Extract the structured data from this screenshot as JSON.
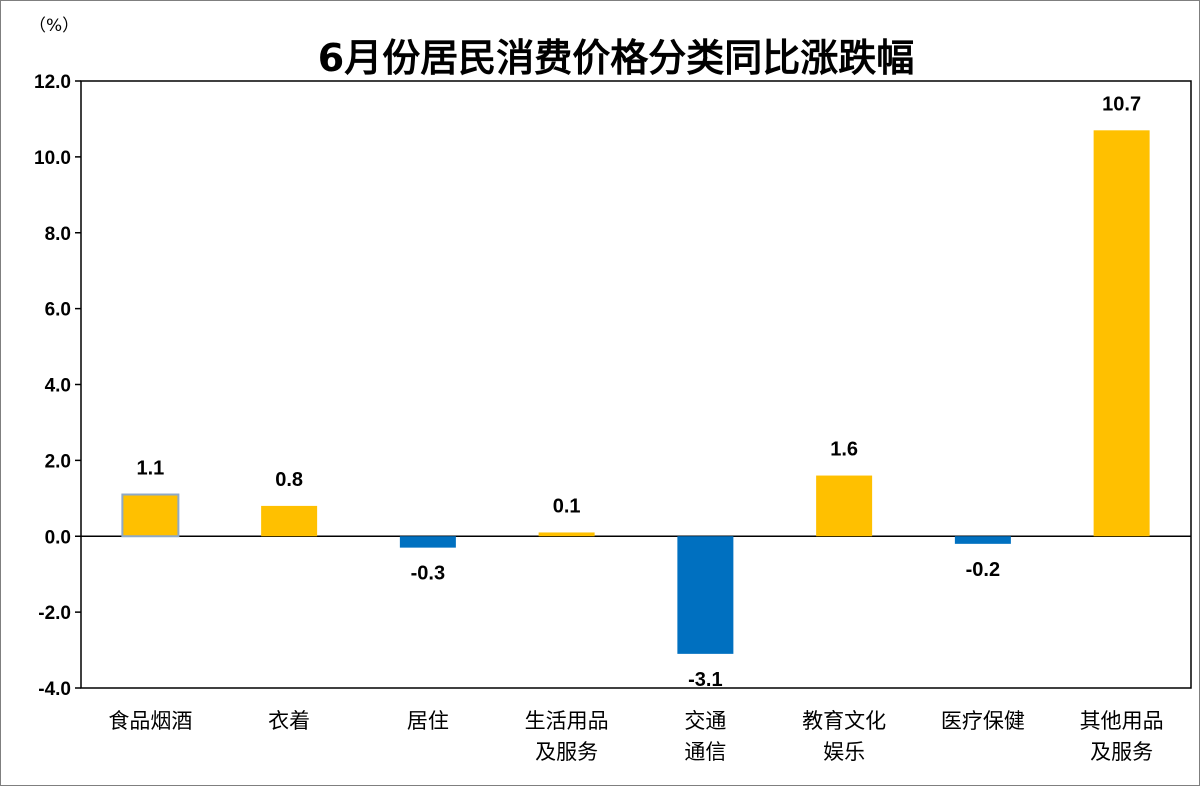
{
  "chart_data": {
    "type": "bar",
    "title": "6月份居民消费价格分类同比涨跌幅",
    "unit": "（%）",
    "categories": [
      [
        "食品烟酒"
      ],
      [
        "衣着"
      ],
      [
        "居住"
      ],
      [
        "生活用品",
        "及服务"
      ],
      [
        "交通",
        "通信"
      ],
      [
        "教育文化",
        "娱乐"
      ],
      [
        "医疗保健"
      ],
      [
        "其他用品",
        "及服务"
      ]
    ],
    "values": [
      1.1,
      0.8,
      -0.3,
      0.1,
      -3.1,
      1.6,
      -0.2,
      10.7
    ],
    "value_labels": [
      "1.1",
      "0.8",
      "-0.3",
      "0.1",
      "-3.1",
      "1.6",
      "-0.2",
      "10.7"
    ],
    "yticks": [
      "12.0",
      "10.0",
      "8.0",
      "6.0",
      "4.0",
      "2.0",
      "0.0",
      "-2.0",
      "-4.0"
    ],
    "ylim": [
      -4,
      12
    ],
    "grid": false,
    "legend": "none",
    "colors": {
      "positive": "#FFC000",
      "negative": "#0070C0",
      "first_bar_outline": "#8EA9C8"
    }
  }
}
